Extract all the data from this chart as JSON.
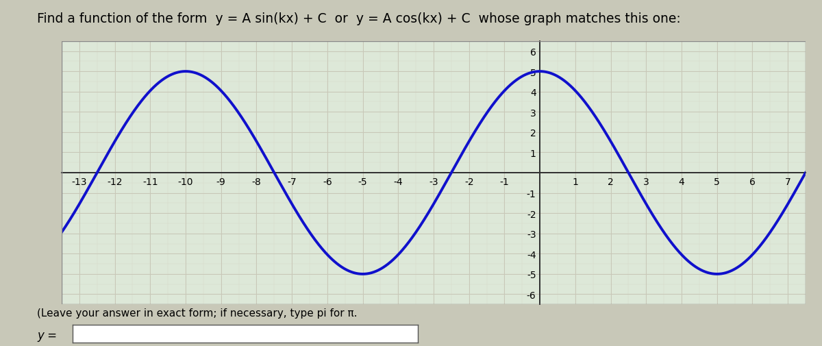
{
  "title_part1": "Find a function of the form  ",
  "title_math1": "y = A sin(kx) + C",
  "title_part2": "  or  ",
  "title_math2": "y = A cos(kx) + C",
  "title_part3": "  whose graph matches this one:",
  "instruction": "(Leave your answer in exact form; if necessary, type pi for π.",
  "answer_label": "y =",
  "amplitude": 5,
  "k_val": 0.6283185307179586,
  "C": 0,
  "x_min": -13.5,
  "x_max": 7.5,
  "y_min": -6.5,
  "y_max": 6.5,
  "x_ticks": [
    -13,
    -12,
    -11,
    -10,
    -9,
    -8,
    -7,
    -6,
    -5,
    -4,
    -3,
    -2,
    -1,
    1,
    2,
    3,
    4,
    5,
    6,
    7
  ],
  "y_ticks_pos": [
    1,
    2,
    3,
    4,
    5,
    6
  ],
  "y_ticks_neg": [
    -1,
    -2,
    -3,
    -4,
    -5,
    -6
  ],
  "curve_color": "#1010cc",
  "curve_linewidth": 2.8,
  "grid_color": "#c8c8b8",
  "minor_grid_color": "#d8d8c8",
  "grid_linewidth": 0.7,
  "bg_color": "#dde8d8",
  "outer_bg": "#c8c8b8",
  "text_color": "#000000",
  "title_fontsize": 13.5,
  "tick_fontsize": 8.5,
  "answer_fontsize": 12,
  "instruction_fontsize": 11
}
